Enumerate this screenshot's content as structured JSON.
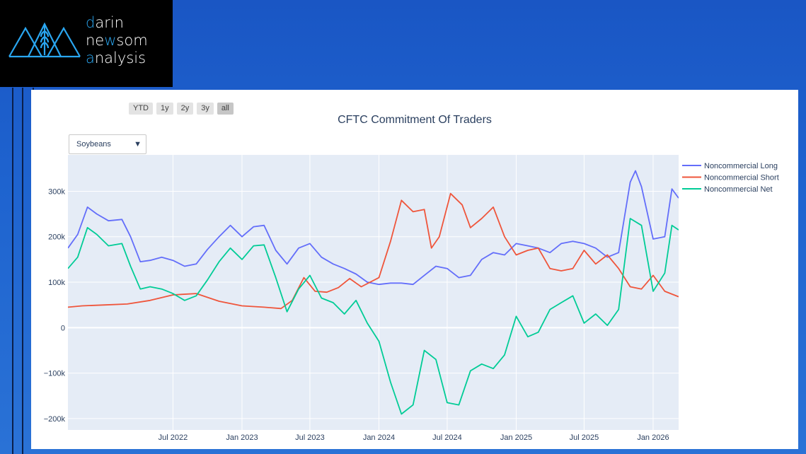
{
  "logo": {
    "line1": {
      "hl": "d",
      "rest": "arin"
    },
    "line2": {
      "a": "ne",
      "hl": "w",
      "b": "som"
    },
    "line3": {
      "hl": "a",
      "rest": "nalysis"
    },
    "icon": "wheat-mountain-icon",
    "accent": "#2aa6f0"
  },
  "range_buttons": [
    "YTD",
    "1y",
    "2y",
    "3y",
    "all"
  ],
  "active_range": "all",
  "selector": {
    "value": "Soybeans"
  },
  "chart_data": {
    "type": "line",
    "title": "CFTC Commitment Of Traders",
    "xlabel": "",
    "ylabel": "",
    "x_range": [
      "2021-09-24",
      "2026-03-10"
    ],
    "ylim": [
      -225000,
      380000
    ],
    "x_ticks": [
      {
        "date": "2022-07-01",
        "label": "Jul 2022"
      },
      {
        "date": "2023-01-01",
        "label": "Jan 2023"
      },
      {
        "date": "2023-07-01",
        "label": "Jul 2023"
      },
      {
        "date": "2024-01-01",
        "label": "Jan 2024"
      },
      {
        "date": "2024-07-01",
        "label": "Jul 2024"
      },
      {
        "date": "2025-01-01",
        "label": "Jan 2025"
      },
      {
        "date": "2025-07-01",
        "label": "Jul 2025"
      },
      {
        "date": "2026-01-01",
        "label": "Jan 2026"
      }
    ],
    "y_ticks": [
      {
        "value": 300000,
        "label": "300k"
      },
      {
        "value": 200000,
        "label": "200k"
      },
      {
        "value": 100000,
        "label": "100k"
      },
      {
        "value": 0,
        "label": "0"
      },
      {
        "value": -100000,
        "label": "−100k"
      },
      {
        "value": -200000,
        "label": "−200k"
      }
    ],
    "grid": true,
    "legend": "right",
    "series": [
      {
        "name": "Noncommercial Long",
        "color": "#636efa",
        "points": [
          [
            "2021-09-24",
            175000
          ],
          [
            "2021-10-20",
            205000
          ],
          [
            "2021-11-15",
            265000
          ],
          [
            "2021-12-10",
            250000
          ],
          [
            "2022-01-10",
            235000
          ],
          [
            "2022-02-15",
            238000
          ],
          [
            "2022-03-10",
            200000
          ],
          [
            "2022-04-05",
            145000
          ],
          [
            "2022-05-01",
            148000
          ],
          [
            "2022-06-01",
            155000
          ],
          [
            "2022-07-01",
            148000
          ],
          [
            "2022-08-01",
            135000
          ],
          [
            "2022-09-01",
            140000
          ],
          [
            "2022-10-01",
            172000
          ],
          [
            "2022-11-01",
            200000
          ],
          [
            "2022-12-01",
            225000
          ],
          [
            "2023-01-01",
            200000
          ],
          [
            "2023-02-01",
            222000
          ],
          [
            "2023-03-01",
            225000
          ],
          [
            "2023-04-01",
            170000
          ],
          [
            "2023-05-01",
            140000
          ],
          [
            "2023-06-01",
            175000
          ],
          [
            "2023-07-01",
            185000
          ],
          [
            "2023-08-01",
            155000
          ],
          [
            "2023-09-01",
            140000
          ],
          [
            "2023-10-01",
            130000
          ],
          [
            "2023-11-01",
            118000
          ],
          [
            "2023-12-01",
            100000
          ],
          [
            "2024-01-01",
            95000
          ],
          [
            "2024-02-01",
            98000
          ],
          [
            "2024-03-01",
            98000
          ],
          [
            "2024-04-01",
            95000
          ],
          [
            "2024-05-01",
            115000
          ],
          [
            "2024-06-01",
            135000
          ],
          [
            "2024-07-01",
            130000
          ],
          [
            "2024-08-01",
            110000
          ],
          [
            "2024-09-01",
            115000
          ],
          [
            "2024-10-01",
            150000
          ],
          [
            "2024-11-01",
            165000
          ],
          [
            "2024-12-01",
            160000
          ],
          [
            "2025-01-01",
            185000
          ],
          [
            "2025-02-01",
            180000
          ],
          [
            "2025-03-01",
            175000
          ],
          [
            "2025-04-01",
            165000
          ],
          [
            "2025-05-01",
            185000
          ],
          [
            "2025-06-01",
            190000
          ],
          [
            "2025-07-01",
            185000
          ],
          [
            "2025-08-01",
            175000
          ],
          [
            "2025-09-01",
            155000
          ],
          [
            "2025-10-01",
            165000
          ],
          [
            "2025-11-01",
            320000
          ],
          [
            "2025-11-15",
            345000
          ],
          [
            "2025-12-01",
            310000
          ],
          [
            "2026-01-01",
            195000
          ],
          [
            "2026-02-01",
            200000
          ],
          [
            "2026-02-20",
            305000
          ],
          [
            "2026-03-10",
            285000
          ]
        ]
      },
      {
        "name": "Noncommercial Short",
        "color": "#ef553b",
        "points": [
          [
            "2021-09-24",
            45000
          ],
          [
            "2021-11-01",
            48000
          ],
          [
            "2022-01-01",
            50000
          ],
          [
            "2022-03-01",
            52000
          ],
          [
            "2022-05-01",
            60000
          ],
          [
            "2022-07-01",
            72000
          ],
          [
            "2022-09-01",
            75000
          ],
          [
            "2022-11-01",
            58000
          ],
          [
            "2023-01-01",
            48000
          ],
          [
            "2023-03-01",
            45000
          ],
          [
            "2023-04-15",
            42000
          ],
          [
            "2023-05-15",
            60000
          ],
          [
            "2023-06-15",
            110000
          ],
          [
            "2023-07-15",
            80000
          ],
          [
            "2023-08-15",
            78000
          ],
          [
            "2023-09-15",
            88000
          ],
          [
            "2023-10-15",
            108000
          ],
          [
            "2023-11-15",
            90000
          ],
          [
            "2024-01-01",
            110000
          ],
          [
            "2024-02-01",
            190000
          ],
          [
            "2024-03-01",
            280000
          ],
          [
            "2024-04-01",
            255000
          ],
          [
            "2024-05-01",
            260000
          ],
          [
            "2024-05-20",
            175000
          ],
          [
            "2024-06-10",
            200000
          ],
          [
            "2024-07-10",
            295000
          ],
          [
            "2024-08-10",
            270000
          ],
          [
            "2024-09-01",
            220000
          ],
          [
            "2024-10-01",
            240000
          ],
          [
            "2024-11-01",
            265000
          ],
          [
            "2024-12-01",
            200000
          ],
          [
            "2025-01-01",
            160000
          ],
          [
            "2025-02-01",
            170000
          ],
          [
            "2025-03-01",
            175000
          ],
          [
            "2025-04-01",
            130000
          ],
          [
            "2025-05-01",
            125000
          ],
          [
            "2025-06-01",
            130000
          ],
          [
            "2025-07-01",
            170000
          ],
          [
            "2025-08-01",
            140000
          ],
          [
            "2025-09-01",
            160000
          ],
          [
            "2025-10-01",
            130000
          ],
          [
            "2025-11-01",
            90000
          ],
          [
            "2025-12-01",
            85000
          ],
          [
            "2026-01-01",
            115000
          ],
          [
            "2026-02-01",
            80000
          ],
          [
            "2026-03-10",
            68000
          ]
        ]
      },
      {
        "name": "Noncommercial Net",
        "color": "#00cc96",
        "points": [
          [
            "2021-09-24",
            130000
          ],
          [
            "2021-10-20",
            155000
          ],
          [
            "2021-11-15",
            220000
          ],
          [
            "2021-12-10",
            205000
          ],
          [
            "2022-01-10",
            180000
          ],
          [
            "2022-02-15",
            185000
          ],
          [
            "2022-03-10",
            135000
          ],
          [
            "2022-04-05",
            85000
          ],
          [
            "2022-05-01",
            90000
          ],
          [
            "2022-06-01",
            85000
          ],
          [
            "2022-07-01",
            75000
          ],
          [
            "2022-08-01",
            60000
          ],
          [
            "2022-09-01",
            70000
          ],
          [
            "2022-10-01",
            105000
          ],
          [
            "2022-11-01",
            145000
          ],
          [
            "2022-12-01",
            175000
          ],
          [
            "2023-01-01",
            150000
          ],
          [
            "2023-02-01",
            180000
          ],
          [
            "2023-03-01",
            182000
          ],
          [
            "2023-04-01",
            110000
          ],
          [
            "2023-05-01",
            35000
          ],
          [
            "2023-06-01",
            85000
          ],
          [
            "2023-07-01",
            115000
          ],
          [
            "2023-08-01",
            65000
          ],
          [
            "2023-09-01",
            55000
          ],
          [
            "2023-10-01",
            30000
          ],
          [
            "2023-11-01",
            60000
          ],
          [
            "2023-12-01",
            10000
          ],
          [
            "2024-01-01",
            -30000
          ],
          [
            "2024-02-01",
            -120000
          ],
          [
            "2024-03-01",
            -190000
          ],
          [
            "2024-04-01",
            -170000
          ],
          [
            "2024-05-01",
            -50000
          ],
          [
            "2024-06-01",
            -70000
          ],
          [
            "2024-07-01",
            -165000
          ],
          [
            "2024-08-01",
            -170000
          ],
          [
            "2024-09-01",
            -95000
          ],
          [
            "2024-10-01",
            -80000
          ],
          [
            "2024-11-01",
            -90000
          ],
          [
            "2024-12-01",
            -60000
          ],
          [
            "2025-01-01",
            25000
          ],
          [
            "2025-02-01",
            -20000
          ],
          [
            "2025-03-01",
            -10000
          ],
          [
            "2025-04-01",
            40000
          ],
          [
            "2025-05-01",
            55000
          ],
          [
            "2025-06-01",
            70000
          ],
          [
            "2025-07-01",
            10000
          ],
          [
            "2025-08-01",
            30000
          ],
          [
            "2025-09-01",
            5000
          ],
          [
            "2025-10-01",
            40000
          ],
          [
            "2025-11-01",
            240000
          ],
          [
            "2025-12-01",
            225000
          ],
          [
            "2026-01-01",
            80000
          ],
          [
            "2026-02-01",
            120000
          ],
          [
            "2026-02-20",
            225000
          ],
          [
            "2026-03-10",
            215000
          ]
        ]
      }
    ]
  }
}
